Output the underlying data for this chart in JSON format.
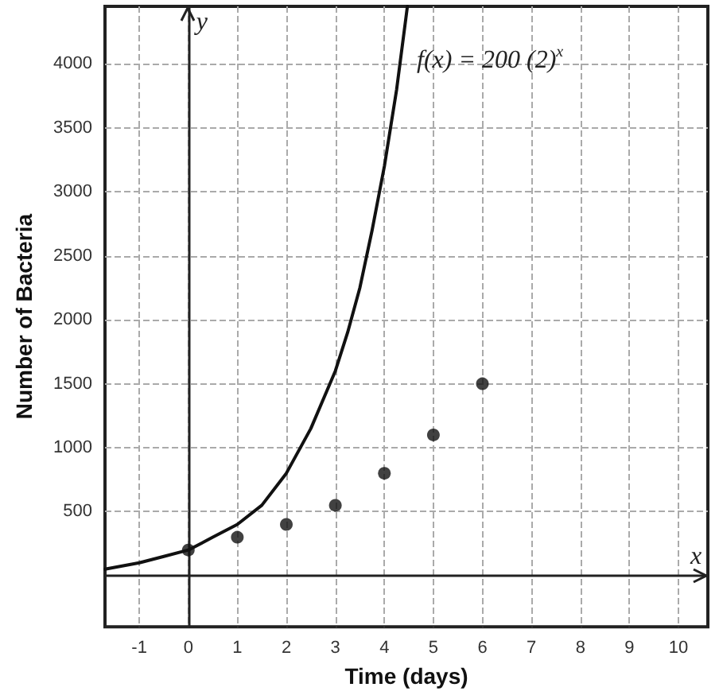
{
  "chart_data": {
    "type": "scatter",
    "xlabel": "Time (days)",
    "ylabel": "Number of Bacteria",
    "xlim": [
      -1.7,
      10.6
    ],
    "ylim": [
      -400,
      4450
    ],
    "xticks": [
      -1,
      0,
      1,
      2,
      3,
      4,
      5,
      6,
      7,
      8,
      9,
      10
    ],
    "yticks": [
      500,
      1000,
      1500,
      2000,
      2500,
      3000,
      3500,
      4000
    ],
    "grid": true,
    "marker": "circle",
    "series": [
      {
        "type": "line",
        "color": "#111111",
        "marker": "none",
        "x": [
          -1.7,
          -1,
          -0.5,
          0,
          0.5,
          1,
          1.5,
          2,
          2.5,
          3,
          3.25,
          3.5,
          3.75,
          4,
          4.25,
          4.47
        ],
        "values": [
          50,
          100,
          150,
          200,
          300,
          400,
          550,
          800,
          1150,
          1600,
          1900,
          2250,
          2700,
          3200,
          3800,
          4450
        ]
      },
      {
        "color": "#111111",
        "x": [
          0,
          1,
          2,
          3,
          4,
          5,
          6
        ],
        "values": [
          200,
          300,
          400,
          550,
          800,
          1100,
          1500
        ]
      }
    ],
    "annotations": [
      "f(x) = 200 (2)$^{x}$",
      "y",
      "x"
    ]
  }
}
